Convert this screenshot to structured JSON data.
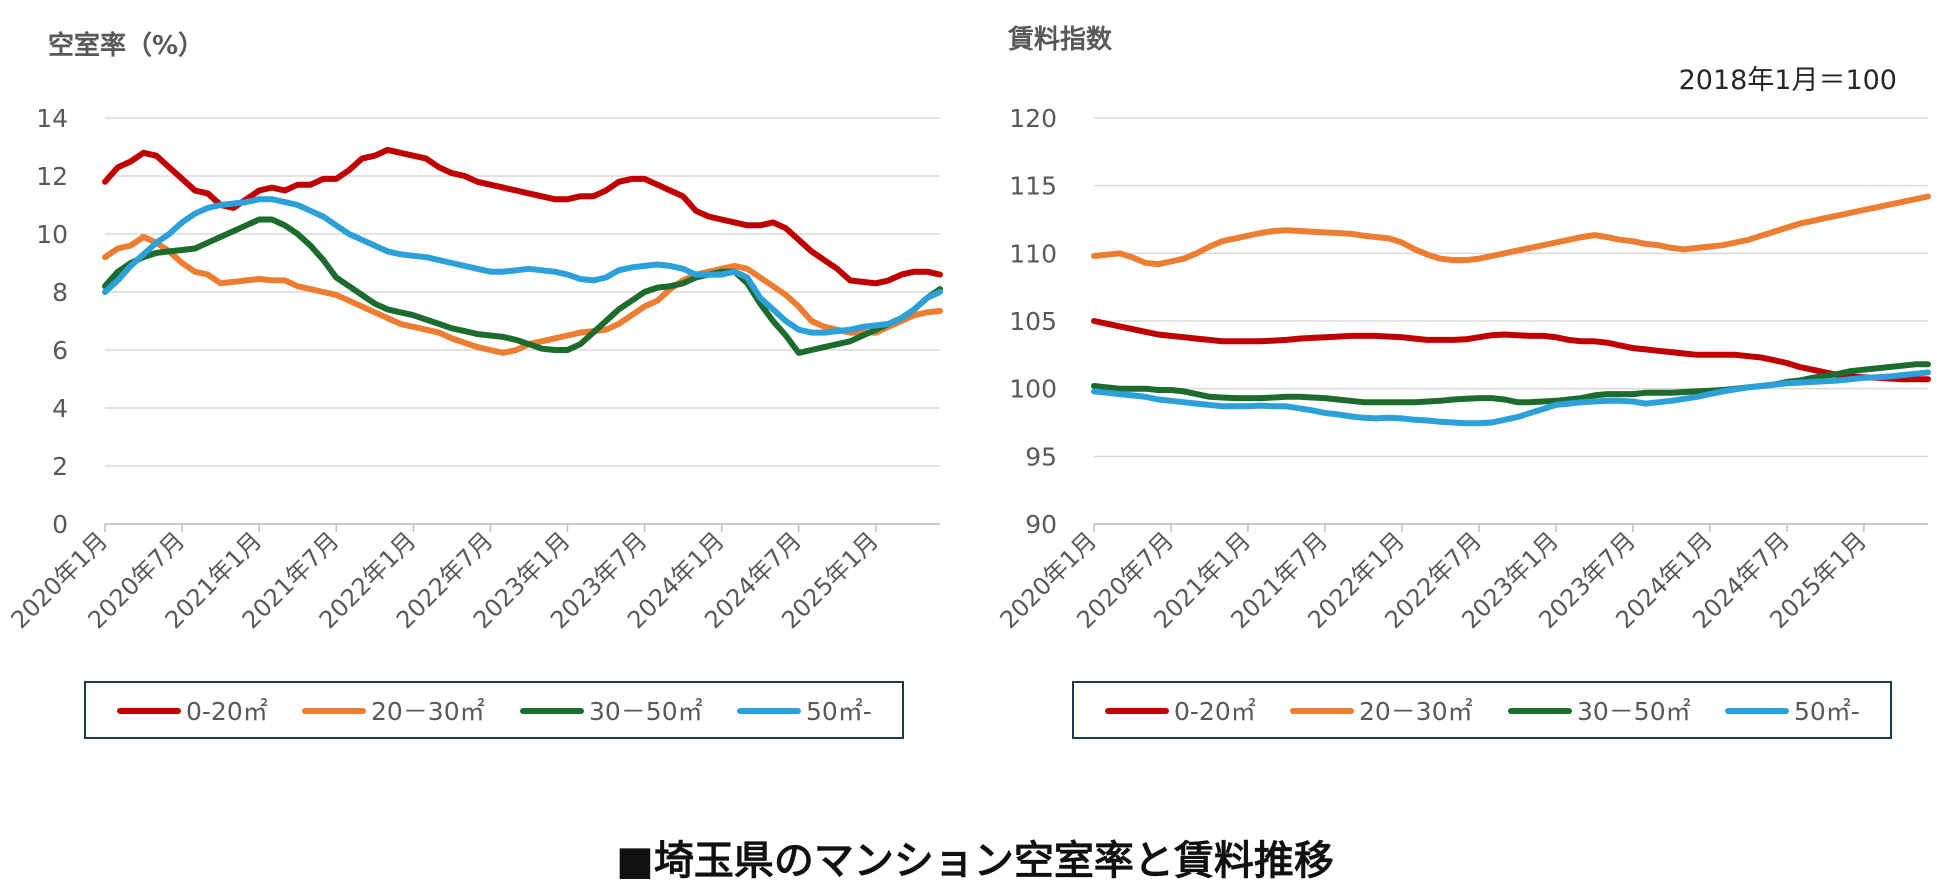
{
  "page": {
    "title": "■埼玉県のマンション空室率と賃料推移"
  },
  "chart_data": [
    {
      "type": "line",
      "title": "空室率（%）",
      "ylim": [
        0,
        14
      ],
      "yticks": [
        0,
        2,
        4,
        6,
        8,
        10,
        12,
        14
      ],
      "grid": true,
      "legend": "bottom",
      "x_labels": [
        "2020年1月",
        "2020年7月",
        "2021年1月",
        "2021年7月",
        "2022年1月",
        "2022年7月",
        "2023年1月",
        "2023年7月",
        "2024年1月",
        "2024年7月",
        "2025年1月"
      ],
      "series": [
        {
          "name": "0-20㎡",
          "color": "#c00000",
          "values": [
            11.8,
            12.3,
            12.5,
            12.8,
            12.7,
            12.3,
            11.9,
            11.5,
            11.4,
            11.0,
            10.9,
            11.2,
            11.5,
            11.6,
            11.5,
            11.7,
            11.7,
            11.9,
            11.9,
            12.2,
            12.6,
            12.7,
            12.9,
            12.8,
            12.7,
            12.6,
            12.3,
            12.1,
            12.0,
            11.8,
            11.7,
            11.6,
            11.5,
            11.4,
            11.3,
            11.2,
            11.2,
            11.3,
            11.3,
            11.5,
            11.8,
            11.9,
            11.9,
            11.7,
            11.5,
            11.3,
            10.8,
            10.6,
            10.5,
            10.4,
            10.3,
            10.3,
            10.4,
            10.2,
            9.8,
            9.4,
            9.1,
            8.8,
            8.4,
            8.35,
            8.3,
            8.4,
            8.6,
            8.7,
            8.7,
            8.6
          ]
        },
        {
          "name": "20－30㎡",
          "color": "#ed7d31",
          "values": [
            9.2,
            9.5,
            9.6,
            9.9,
            9.7,
            9.4,
            9.0,
            8.7,
            8.6,
            8.3,
            8.35,
            8.4,
            8.45,
            8.4,
            8.4,
            8.2,
            8.1,
            8.0,
            7.9,
            7.7,
            7.5,
            7.3,
            7.1,
            6.9,
            6.8,
            6.7,
            6.6,
            6.4,
            6.25,
            6.1,
            6.0,
            5.9,
            6.0,
            6.2,
            6.3,
            6.4,
            6.5,
            6.6,
            6.65,
            6.7,
            6.9,
            7.2,
            7.5,
            7.7,
            8.1,
            8.4,
            8.6,
            8.7,
            8.8,
            8.9,
            8.8,
            8.5,
            8.2,
            7.9,
            7.5,
            7.0,
            6.8,
            6.7,
            6.6,
            6.6,
            6.6,
            6.8,
            7.0,
            7.2,
            7.3,
            7.35
          ]
        },
        {
          "name": "30－50㎡",
          "color": "#1e6b2e",
          "values": [
            8.2,
            8.7,
            9.0,
            9.2,
            9.35,
            9.4,
            9.45,
            9.5,
            9.7,
            9.9,
            10.1,
            10.3,
            10.5,
            10.5,
            10.3,
            10.0,
            9.6,
            9.1,
            8.5,
            8.2,
            7.9,
            7.6,
            7.4,
            7.3,
            7.2,
            7.05,
            6.9,
            6.75,
            6.65,
            6.55,
            6.5,
            6.45,
            6.35,
            6.2,
            6.05,
            6.0,
            6.0,
            6.2,
            6.6,
            7.0,
            7.4,
            7.7,
            8.0,
            8.15,
            8.2,
            8.3,
            8.5,
            8.6,
            8.7,
            8.7,
            8.3,
            7.6,
            7.0,
            6.5,
            5.9,
            6.0,
            6.1,
            6.2,
            6.3,
            6.5,
            6.7,
            6.9,
            7.1,
            7.4,
            7.8,
            8.1
          ]
        },
        {
          "name": "50㎡-",
          "color": "#2ca0d8",
          "values": [
            8.0,
            8.4,
            8.9,
            9.3,
            9.7,
            10.0,
            10.4,
            10.7,
            10.9,
            11.0,
            11.05,
            11.1,
            11.2,
            11.2,
            11.1,
            11.0,
            10.8,
            10.6,
            10.3,
            10.0,
            9.8,
            9.6,
            9.4,
            9.3,
            9.25,
            9.2,
            9.1,
            9.0,
            8.9,
            8.8,
            8.7,
            8.7,
            8.75,
            8.8,
            8.75,
            8.7,
            8.6,
            8.45,
            8.4,
            8.5,
            8.75,
            8.85,
            8.9,
            8.95,
            8.9,
            8.8,
            8.6,
            8.6,
            8.6,
            8.7,
            8.5,
            7.8,
            7.4,
            7.0,
            6.7,
            6.6,
            6.6,
            6.65,
            6.7,
            6.8,
            6.85,
            6.9,
            7.1,
            7.4,
            7.8,
            8.0
          ]
        }
      ]
    },
    {
      "type": "line",
      "title": "賃料指数",
      "annotation": "2018年1月＝100",
      "ylim": [
        90,
        120
      ],
      "yticks": [
        90,
        95,
        100,
        105,
        110,
        115,
        120
      ],
      "grid": true,
      "legend": "bottom",
      "x_labels": [
        "2020年1月",
        "2020年7月",
        "2021年1月",
        "2021年7月",
        "2022年1月",
        "2022年7月",
        "2023年1月",
        "2023年7月",
        "2024年1月",
        "2024年7月",
        "2025年1月"
      ],
      "series": [
        {
          "name": "0-20㎡",
          "color": "#c00000",
          "values": [
            105.0,
            104.8,
            104.6,
            104.4,
            104.2,
            104.0,
            103.9,
            103.8,
            103.7,
            103.6,
            103.5,
            103.5,
            103.5,
            103.5,
            103.55,
            103.6,
            103.7,
            103.75,
            103.8,
            103.85,
            103.9,
            103.9,
            103.9,
            103.85,
            103.8,
            103.7,
            103.6,
            103.6,
            103.6,
            103.65,
            103.8,
            103.95,
            104.0,
            103.95,
            103.9,
            103.9,
            103.8,
            103.6,
            103.5,
            103.5,
            103.4,
            103.2,
            103.0,
            102.9,
            102.8,
            102.7,
            102.6,
            102.5,
            102.5,
            102.5,
            102.5,
            102.4,
            102.3,
            102.1,
            101.9,
            101.6,
            101.4,
            101.2,
            101.0,
            100.9,
            100.85,
            100.8,
            100.75,
            100.7,
            100.7,
            100.7
          ]
        },
        {
          "name": "20－30㎡",
          "color": "#ed7d31",
          "values": [
            109.8,
            109.9,
            110.0,
            109.7,
            109.3,
            109.2,
            109.4,
            109.6,
            110.0,
            110.5,
            110.9,
            111.1,
            111.3,
            111.5,
            111.65,
            111.7,
            111.65,
            111.6,
            111.55,
            111.5,
            111.45,
            111.3,
            111.2,
            111.1,
            110.8,
            110.3,
            109.9,
            109.6,
            109.5,
            109.5,
            109.6,
            109.8,
            110.0,
            110.2,
            110.4,
            110.6,
            110.8,
            111.0,
            111.2,
            111.35,
            111.2,
            111.0,
            110.9,
            110.7,
            110.6,
            110.4,
            110.3,
            110.4,
            110.5,
            110.6,
            110.8,
            111.0,
            111.3,
            111.6,
            111.9,
            112.2,
            112.4,
            112.6,
            112.8,
            113.0,
            113.2,
            113.4,
            113.6,
            113.8,
            114.0,
            114.2
          ]
        },
        {
          "name": "30－50㎡",
          "color": "#1e6b2e",
          "values": [
            100.2,
            100.1,
            100.0,
            100.0,
            100.0,
            99.9,
            99.9,
            99.8,
            99.6,
            99.4,
            99.35,
            99.3,
            99.3,
            99.3,
            99.35,
            99.4,
            99.4,
            99.35,
            99.3,
            99.2,
            99.1,
            99.0,
            99.0,
            99.0,
            99.0,
            99.0,
            99.05,
            99.1,
            99.2,
            99.25,
            99.3,
            99.3,
            99.2,
            99.0,
            99.0,
            99.05,
            99.1,
            99.2,
            99.3,
            99.5,
            99.6,
            99.6,
            99.6,
            99.7,
            99.7,
            99.7,
            99.75,
            99.8,
            99.85,
            99.9,
            100.0,
            100.1,
            100.2,
            100.3,
            100.5,
            100.6,
            100.8,
            100.95,
            101.1,
            101.3,
            101.4,
            101.5,
            101.6,
            101.7,
            101.8,
            101.8
          ]
        },
        {
          "name": "50㎡-",
          "color": "#2ca0d8",
          "values": [
            99.8,
            99.7,
            99.6,
            99.5,
            99.4,
            99.2,
            99.1,
            99.0,
            98.9,
            98.8,
            98.7,
            98.7,
            98.7,
            98.75,
            98.7,
            98.7,
            98.55,
            98.4,
            98.2,
            98.1,
            97.95,
            97.85,
            97.8,
            97.85,
            97.8,
            97.7,
            97.65,
            97.55,
            97.5,
            97.45,
            97.45,
            97.5,
            97.7,
            97.9,
            98.2,
            98.5,
            98.8,
            98.9,
            99.0,
            99.05,
            99.1,
            99.1,
            99.05,
            98.9,
            99.0,
            99.1,
            99.25,
            99.4,
            99.6,
            99.8,
            99.95,
            100.1,
            100.2,
            100.3,
            100.4,
            100.45,
            100.5,
            100.55,
            100.6,
            100.7,
            100.8,
            100.85,
            100.9,
            101.0,
            101.1,
            101.2
          ]
        }
      ]
    }
  ]
}
